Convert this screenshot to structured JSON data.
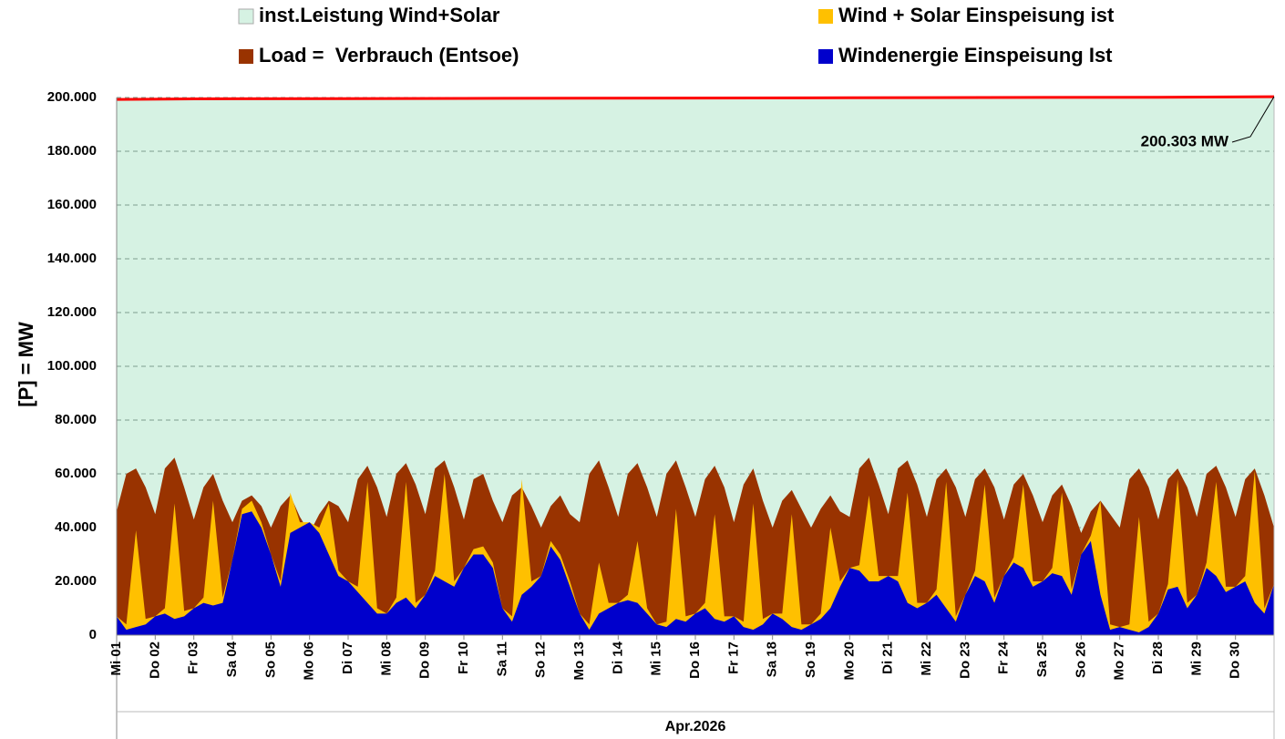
{
  "chart_data": {
    "type": "area",
    "y_label": "[P] = MW",
    "x_label": "Apr.2026",
    "xlim": [
      1,
      31
    ],
    "xticks": [
      {
        "value": 1,
        "label": "Mi 01"
      },
      {
        "value": 2,
        "label": "Do 02"
      },
      {
        "value": 3,
        "label": "Fr 03"
      },
      {
        "value": 4,
        "label": "Sa 04"
      },
      {
        "value": 5,
        "label": "So 05"
      },
      {
        "value": 6,
        "label": "Mo 06"
      },
      {
        "value": 7,
        "label": "Di 07"
      },
      {
        "value": 8,
        "label": "Mi 08"
      },
      {
        "value": 9,
        "label": "Do 09"
      },
      {
        "value": 10,
        "label": "Fr 10"
      },
      {
        "value": 11,
        "label": "Sa 11"
      },
      {
        "value": 12,
        "label": "So 12"
      },
      {
        "value": 13,
        "label": "Mo 13"
      },
      {
        "value": 14,
        "label": "Di 14"
      },
      {
        "value": 15,
        "label": "Mi 15"
      },
      {
        "value": 16,
        "label": "Do 16"
      },
      {
        "value": 17,
        "label": "Fr 17"
      },
      {
        "value": 18,
        "label": "Sa 18"
      },
      {
        "value": 19,
        "label": "So 19"
      },
      {
        "value": 20,
        "label": "Mo 20"
      },
      {
        "value": 21,
        "label": "Di 21"
      },
      {
        "value": 22,
        "label": "Mi 22"
      },
      {
        "value": 23,
        "label": "Do 23"
      },
      {
        "value": 24,
        "label": "Fr 24"
      },
      {
        "value": 25,
        "label": "Sa 25"
      },
      {
        "value": 26,
        "label": "So 26"
      },
      {
        "value": 27,
        "label": "Mo 27"
      },
      {
        "value": 28,
        "label": "Di 28"
      },
      {
        "value": 29,
        "label": "Mi 29"
      },
      {
        "value": 30,
        "label": "Do 30"
      }
    ],
    "ylim": [
      0,
      200000
    ],
    "yticks": [
      0,
      {
        "value": 20000,
        "label": "20.000"
      },
      {
        "value": 40000,
        "label": "40.000"
      },
      {
        "value": 60000,
        "label": "60.000"
      },
      {
        "value": 80000,
        "label": "80.000"
      },
      {
        "value": 100000,
        "label": "100.000"
      },
      {
        "value": 120000,
        "label": "120.000"
      },
      {
        "value": 140000,
        "label": "140.000"
      },
      {
        "value": 160000,
        "label": "160.000"
      },
      {
        "value": 180000,
        "label": "180.000"
      },
      {
        "value": 200000,
        "label": "200.000"
      }
    ],
    "grid": true,
    "x": [
      1,
      1.25,
      1.5,
      1.75,
      2,
      2.25,
      2.5,
      2.75,
      3,
      3.25,
      3.5,
      3.75,
      4,
      4.25,
      4.5,
      4.75,
      5,
      5.25,
      5.5,
      5.75,
      6,
      6.25,
      6.5,
      6.75,
      7,
      7.25,
      7.5,
      7.75,
      8,
      8.25,
      8.5,
      8.75,
      9,
      9.25,
      9.5,
      9.75,
      10,
      10.25,
      10.5,
      10.75,
      11,
      11.25,
      11.5,
      11.75,
      12,
      12.25,
      12.5,
      12.75,
      13,
      13.25,
      13.5,
      13.75,
      14,
      14.25,
      14.5,
      14.75,
      15,
      15.25,
      15.5,
      15.75,
      16,
      16.25,
      16.5,
      16.75,
      17,
      17.25,
      17.5,
      17.75,
      18,
      18.25,
      18.5,
      18.75,
      19,
      19.25,
      19.5,
      19.75,
      20,
      20.25,
      20.5,
      20.75,
      21,
      21.25,
      21.5,
      21.75,
      22,
      22.25,
      22.5,
      22.75,
      23,
      23.25,
      23.5,
      23.75,
      24,
      24.25,
      24.5,
      24.75,
      25,
      25.25,
      25.5,
      25.75,
      26,
      26.25,
      26.5,
      26.75,
      27,
      27.25,
      27.5,
      27.75,
      28,
      28.25,
      28.5,
      28.75,
      29,
      29.25,
      29.5,
      29.75,
      30,
      30.25,
      30.5,
      30.75,
      31
    ],
    "series": [
      {
        "name": "inst.Leistung Wind+Solar",
        "color": "#ff0000",
        "fill_color": "#d6f2e3",
        "x": [
          1,
          3,
          11,
          20,
          28,
          31
        ],
        "values": [
          199300,
          199500,
          199700,
          199900,
          200100,
          200303
        ]
      },
      {
        "name": "Load =  Verbrauch (Entsoe)",
        "color": "#993300",
        "values": [
          46000,
          60000,
          62000,
          55000,
          45000,
          62000,
          66000,
          55000,
          43000,
          55000,
          60000,
          50000,
          42000,
          50000,
          52000,
          48000,
          40000,
          48000,
          52000,
          44000,
          38000,
          45000,
          50000,
          48000,
          42000,
          58000,
          63000,
          55000,
          44000,
          60000,
          64000,
          56000,
          45000,
          62000,
          65000,
          55000,
          43000,
          58000,
          60000,
          50000,
          42000,
          52000,
          55000,
          48000,
          40000,
          48000,
          52000,
          45000,
          42000,
          60000,
          65000,
          55000,
          44000,
          60000,
          64000,
          55000,
          44000,
          60000,
          65000,
          55000,
          44000,
          58000,
          63000,
          55000,
          42000,
          56000,
          62000,
          50000,
          40000,
          50000,
          54000,
          47000,
          40000,
          47000,
          52000,
          46000,
          44000,
          62000,
          66000,
          56000,
          45000,
          62000,
          65000,
          56000,
          44000,
          58000,
          62000,
          55000,
          44000,
          58000,
          62000,
          55000,
          43000,
          56000,
          60000,
          52000,
          42000,
          52000,
          56000,
          48000,
          38000,
          46000,
          50000,
          45000,
          40000,
          58000,
          62000,
          55000,
          43000,
          58000,
          62000,
          55000,
          44000,
          60000,
          63000,
          55000,
          44000,
          58000,
          62000,
          52000,
          40000
        ]
      },
      {
        "name": "Wind + Solar Einspeisung ist",
        "color": "#ffc000",
        "values": [
          7000,
          4000,
          39000,
          6000,
          7000,
          10000,
          49000,
          9000,
          10000,
          14000,
          50000,
          14000,
          28000,
          47000,
          50000,
          42000,
          30000,
          20000,
          53000,
          42000,
          42000,
          40000,
          49000,
          24000,
          20000,
          18000,
          57000,
          10000,
          8000,
          14000,
          57000,
          12000,
          15000,
          24000,
          60000,
          20000,
          25000,
          32000,
          33000,
          27000,
          10000,
          7000,
          58000,
          20000,
          22000,
          35000,
          30000,
          20000,
          8000,
          4000,
          27000,
          12000,
          12000,
          15000,
          35000,
          10000,
          4000,
          5000,
          47000,
          7000,
          8000,
          12000,
          45000,
          7000,
          7000,
          5000,
          49000,
          6000,
          8000,
          8000,
          45000,
          4000,
          4000,
          8000,
          40000,
          20000,
          25000,
          26000,
          52000,
          22000,
          22000,
          22000,
          53000,
          12000,
          12000,
          17000,
          57000,
          7000,
          15000,
          24000,
          56000,
          14000,
          22000,
          29000,
          56000,
          20000,
          20000,
          25000,
          53000,
          17000,
          30000,
          37000,
          50000,
          4000,
          3000,
          4000,
          44000,
          5000,
          8000,
          19000,
          58000,
          12000,
          15000,
          27000,
          57000,
          18000,
          18000,
          22000,
          61000,
          10000,
          19000
        ]
      },
      {
        "name": "Windenergie Einspeisung Ist",
        "color": "#0000cc",
        "values": [
          7000,
          2000,
          3000,
          4000,
          7000,
          8000,
          6000,
          7000,
          10000,
          12000,
          11000,
          12000,
          28000,
          45000,
          46000,
          40000,
          30000,
          18000,
          38000,
          40000,
          42000,
          38000,
          30000,
          22000,
          20000,
          16000,
          12000,
          8000,
          8000,
          12000,
          14000,
          10000,
          15000,
          22000,
          20000,
          18000,
          25000,
          30000,
          30000,
          25000,
          10000,
          5000,
          15000,
          18000,
          22000,
          33000,
          28000,
          18000,
          8000,
          2000,
          8000,
          10000,
          12000,
          13000,
          12000,
          8000,
          4000,
          3000,
          6000,
          5000,
          8000,
          10000,
          6000,
          5000,
          7000,
          3000,
          2000,
          4000,
          8000,
          6000,
          3000,
          2000,
          4000,
          6000,
          10000,
          18000,
          25000,
          24000,
          20000,
          20000,
          22000,
          20000,
          12000,
          10000,
          12000,
          15000,
          10000,
          5000,
          15000,
          22000,
          20000,
          12000,
          22000,
          27000,
          25000,
          18000,
          20000,
          23000,
          22000,
          15000,
          30000,
          35000,
          15000,
          2000,
          3000,
          2000,
          1000,
          3000,
          8000,
          17000,
          18000,
          10000,
          15000,
          25000,
          22000,
          16000,
          18000,
          20000,
          12000,
          8000,
          19000
        ]
      }
    ],
    "annotations": [
      {
        "text": "200.303 MW"
      }
    ]
  }
}
